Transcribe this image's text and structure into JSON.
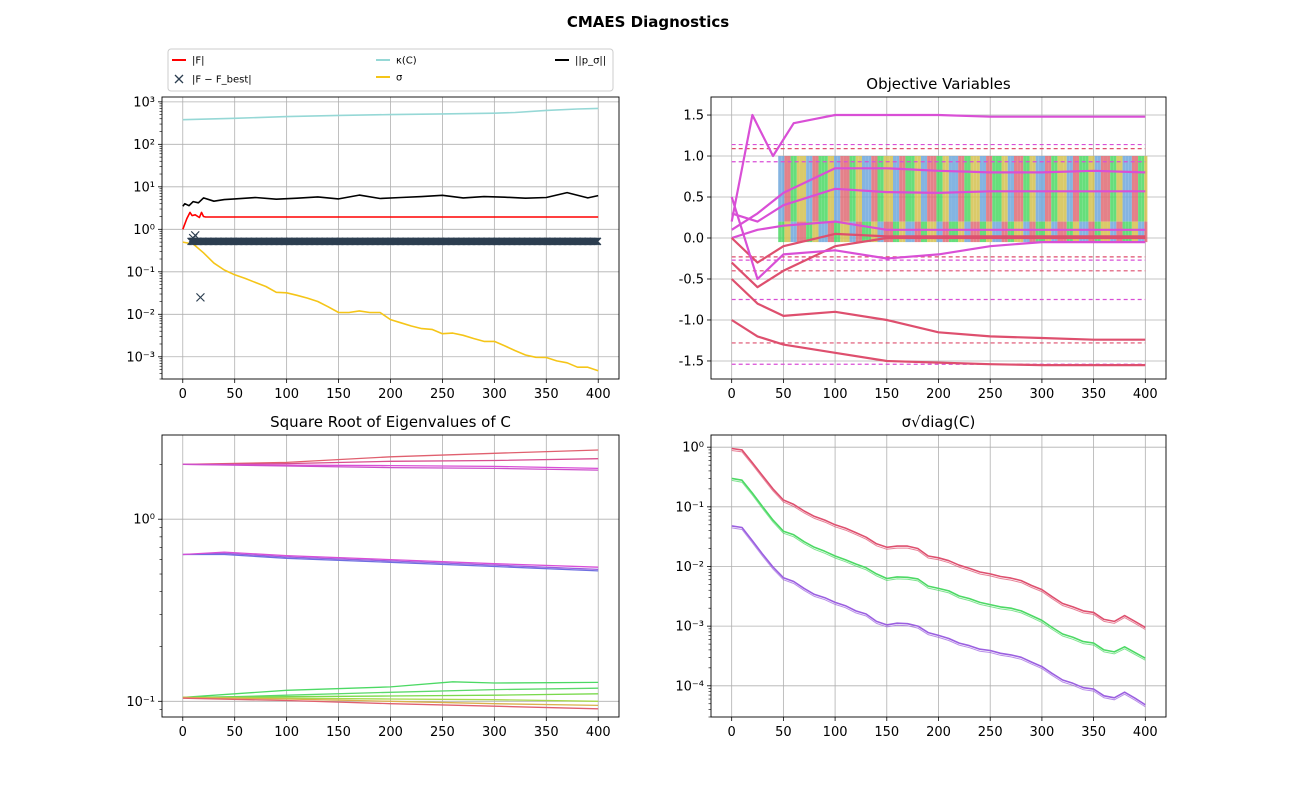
{
  "figure": {
    "title": "CMAES Diagnostics"
  },
  "chart_data": [
    {
      "type": "line",
      "title": "",
      "yscale": "log",
      "ylim": [
        0.0003,
        1300
      ],
      "xlim": [
        -20,
        420
      ],
      "xticks": [
        0,
        50,
        100,
        150,
        200,
        250,
        300,
        350,
        400
      ],
      "ytick_labels": [
        "10^-3",
        "10^-2",
        "10^-1",
        "10^0",
        "10^1",
        "10^2",
        "10^3"
      ],
      "grid": true,
      "legend": {
        "placement": "above",
        "entries": [
          {
            "label": "|F|",
            "color": "#ff0000",
            "marker": "line"
          },
          {
            "label": "|F − F_best|",
            "color": "#2c3e50",
            "marker": "x"
          },
          {
            "label": "κ(C)",
            "color": "#96d8d6",
            "marker": "line"
          },
          {
            "label": "σ",
            "color": "#f5c518",
            "marker": "line"
          },
          {
            "label": "||p_σ||",
            "color": "#000000",
            "marker": "line"
          }
        ]
      },
      "series": [
        {
          "name": "κ(C)",
          "color": "#96d8d6",
          "x": [
            0,
            50,
            100,
            150,
            200,
            250,
            300,
            320,
            350,
            380,
            400
          ],
          "y": [
            380,
            410,
            450,
            480,
            500,
            520,
            540,
            560,
            630,
            680,
            700
          ]
        },
        {
          "name": "||p_σ||",
          "color": "#000000",
          "x": [
            0,
            2,
            6,
            10,
            15,
            20,
            30,
            40,
            50,
            70,
            90,
            110,
            130,
            150,
            170,
            190,
            210,
            230,
            250,
            270,
            290,
            310,
            330,
            350,
            370,
            390,
            400
          ],
          "y": [
            3.5,
            4,
            3.6,
            4.5,
            4.2,
            5.5,
            4.6,
            5,
            5.2,
            5.6,
            5.1,
            5.4,
            5.8,
            5.2,
            6.4,
            5.3,
            5.6,
            5.9,
            6.3,
            5.5,
            5.9,
            5.7,
            5.4,
            5.6,
            7.3,
            5.5,
            6.2
          ]
        },
        {
          "name": "|F|",
          "color": "#ff0000",
          "x": [
            0,
            4,
            7,
            9,
            12,
            16,
            18,
            20,
            22,
            400
          ],
          "y": [
            1,
            1.8,
            2.5,
            2.1,
            2.2,
            1.9,
            2.5,
            2,
            1.95,
            1.95
          ]
        },
        {
          "name": "σ",
          "color": "#f5c518",
          "x": [
            0,
            10,
            20,
            30,
            40,
            50,
            60,
            70,
            80,
            90,
            100,
            110,
            120,
            130,
            140,
            150,
            160,
            170,
            180,
            190,
            200,
            210,
            220,
            230,
            240,
            250,
            260,
            270,
            280,
            290,
            300,
            310,
            320,
            330,
            340,
            350,
            360,
            370,
            380,
            390,
            400
          ],
          "y": [
            0.5,
            0.45,
            0.28,
            0.16,
            0.11,
            0.085,
            0.07,
            0.056,
            0.045,
            0.033,
            0.032,
            0.028,
            0.024,
            0.02,
            0.015,
            0.011,
            0.011,
            0.012,
            0.011,
            0.011,
            0.0075,
            0.0063,
            0.0053,
            0.0046,
            0.0044,
            0.0035,
            0.0036,
            0.0032,
            0.0027,
            0.0023,
            0.0023,
            0.0018,
            0.0014,
            0.0011,
            0.00097,
            0.00096,
            0.0008,
            0.00072,
            0.00057,
            0.00057,
            0.00047
          ]
        },
        {
          "name": "|F − F_best|",
          "color": "#2c3e50",
          "style": "marker-x",
          "x": [
            10,
            12,
            17
          ],
          "y": [
            0.62,
            0.72,
            0.025
          ],
          "flat_value": 0.52,
          "flat_from": 8,
          "flat_to": 400
        }
      ]
    },
    {
      "type": "line",
      "title": "Objective Variables",
      "ylim": [
        -1.72,
        1.72
      ],
      "xlim": [
        -20,
        420
      ],
      "xticks": [
        0,
        50,
        100,
        150,
        200,
        250,
        300,
        350,
        400
      ],
      "yticks": [
        -1.5,
        -1.0,
        -0.5,
        0.0,
        0.5,
        1.0,
        1.5
      ],
      "grid": true,
      "band_colors": [
        "#4cd964",
        "#d4c150",
        "#6fa8dc",
        "#e06c75"
      ],
      "bands": [
        {
          "lo": 0.2,
          "hi": 1.0
        },
        {
          "lo": -0.05,
          "hi": 0.2
        }
      ],
      "dashed_levels": [
        1.14,
        1.09,
        0.93,
        -0.23,
        -0.27,
        -0.4,
        -0.75,
        -1.28,
        -1.54
      ],
      "series": [
        {
          "color": "#d94fd6",
          "x": [
            0,
            20,
            40,
            60,
            80,
            100,
            150,
            200,
            250,
            300,
            350,
            400
          ],
          "y": [
            0.2,
            1.5,
            1.0,
            1.4,
            1.45,
            1.5,
            1.5,
            1.5,
            1.48,
            1.48,
            1.48,
            1.48
          ]
        },
        {
          "color": "#d94fd6",
          "x": [
            0,
            25,
            50,
            100,
            150,
            200,
            250,
            300,
            350,
            400
          ],
          "y": [
            0.1,
            0.3,
            0.55,
            0.85,
            0.85,
            0.82,
            0.8,
            0.8,
            0.82,
            0.8
          ]
        },
        {
          "color": "#d94fd6",
          "x": [
            0,
            25,
            50,
            100,
            150,
            200,
            250,
            300,
            350,
            400
          ],
          "y": [
            0.3,
            0.2,
            0.4,
            0.6,
            0.56,
            0.55,
            0.57,
            0.57,
            0.57,
            0.57
          ]
        },
        {
          "color": "#d94fd6",
          "x": [
            0,
            25,
            50,
            100,
            150,
            200,
            250,
            300,
            350,
            400
          ],
          "y": [
            0.0,
            0.1,
            0.15,
            0.2,
            0.1,
            0.1,
            0.1,
            0.1,
            0.1,
            0.1
          ]
        },
        {
          "color": "#de4f6e",
          "x": [
            0,
            25,
            50,
            100,
            150,
            200,
            250,
            300,
            350,
            400
          ],
          "y": [
            0.0,
            -0.3,
            -0.1,
            0.05,
            0.02,
            0.02,
            0.02,
            0.02,
            0.02,
            0.02
          ]
        },
        {
          "color": "#de4f6e",
          "x": [
            0,
            25,
            50,
            100,
            150,
            200,
            250,
            300,
            350,
            400
          ],
          "y": [
            -0.5,
            -0.8,
            -0.95,
            -0.9,
            -1.0,
            -1.15,
            -1.2,
            -1.22,
            -1.24,
            -1.24
          ]
        },
        {
          "color": "#de4f6e",
          "x": [
            0,
            25,
            50,
            100,
            150,
            200,
            250,
            300,
            350,
            400
          ],
          "y": [
            -1.0,
            -1.2,
            -1.3,
            -1.4,
            -1.5,
            -1.52,
            -1.54,
            -1.55,
            -1.55,
            -1.55
          ]
        },
        {
          "color": "#de4f6e",
          "x": [
            0,
            25,
            50,
            100,
            150,
            200,
            250,
            300,
            350,
            400
          ],
          "y": [
            -0.3,
            -0.6,
            -0.4,
            -0.1,
            0.0,
            0.0,
            0.0,
            0.0,
            0.0,
            0.0
          ]
        },
        {
          "color": "#d94fd6",
          "x": [
            0,
            25,
            50,
            100,
            150,
            200,
            250,
            300,
            350,
            400
          ],
          "y": [
            0.5,
            -0.5,
            -0.2,
            -0.15,
            -0.25,
            -0.2,
            -0.1,
            -0.05,
            -0.05,
            -0.05
          ]
        }
      ]
    },
    {
      "type": "line",
      "title": "Square Root of Eigenvalues of C",
      "yscale": "log",
      "ylim": [
        0.082,
        2.9
      ],
      "xlim": [
        -20,
        420
      ],
      "xticks": [
        0,
        50,
        100,
        150,
        200,
        250,
        300,
        350,
        400
      ],
      "ytick_labels": [
        "10^-1",
        "10^0"
      ],
      "grid": true,
      "series": [
        {
          "color": "#e0606f",
          "x": [
            0,
            100,
            200,
            300,
            400
          ],
          "y": [
            2.0,
            2.05,
            2.2,
            2.3,
            2.4
          ]
        },
        {
          "color": "#d94f8f",
          "x": [
            0,
            100,
            200,
            300,
            400
          ],
          "y": [
            2.0,
            2.02,
            2.08,
            2.1,
            2.15
          ]
        },
        {
          "color": "#d94fd6",
          "x": [
            0,
            100,
            200,
            300,
            400
          ],
          "y": [
            2.0,
            1.98,
            1.97,
            1.95,
            1.9
          ]
        },
        {
          "color": "#cc4fcc",
          "x": [
            0,
            100,
            200,
            300,
            400
          ],
          "y": [
            2.0,
            1.96,
            1.92,
            1.9,
            1.86
          ]
        },
        {
          "color": "#9b5fe0",
          "x": [
            0,
            40,
            100,
            200,
            300,
            400
          ],
          "y": [
            0.64,
            0.65,
            0.62,
            0.59,
            0.56,
            0.53
          ]
        },
        {
          "color": "#6f6fe0",
          "x": [
            0,
            40,
            100,
            200,
            300,
            400
          ],
          "y": [
            0.64,
            0.64,
            0.61,
            0.58,
            0.55,
            0.52
          ]
        },
        {
          "color": "#d94fd6",
          "x": [
            0,
            40,
            100,
            200,
            300,
            400
          ],
          "y": [
            0.64,
            0.66,
            0.63,
            0.6,
            0.57,
            0.545
          ]
        },
        {
          "color": "#4cd964",
          "x": [
            0,
            50,
            100,
            200,
            260,
            300,
            400
          ],
          "y": [
            0.105,
            0.11,
            0.115,
            0.12,
            0.128,
            0.126,
            0.127
          ]
        },
        {
          "color": "#5bd96b",
          "x": [
            0,
            50,
            100,
            200,
            300,
            400
          ],
          "y": [
            0.105,
            0.106,
            0.108,
            0.112,
            0.116,
            0.118
          ]
        },
        {
          "color": "#7ad94c",
          "x": [
            0,
            100,
            200,
            300,
            400
          ],
          "y": [
            0.105,
            0.106,
            0.107,
            0.108,
            0.11
          ]
        },
        {
          "color": "#a6d94c",
          "x": [
            0,
            100,
            200,
            300,
            400
          ],
          "y": [
            0.105,
            0.104,
            0.103,
            0.102,
            0.1
          ]
        },
        {
          "color": "#d9b34c",
          "x": [
            0,
            100,
            200,
            300,
            400
          ],
          "y": [
            0.105,
            0.103,
            0.1,
            0.097,
            0.095
          ]
        },
        {
          "color": "#e0606f",
          "x": [
            0,
            100,
            200,
            300,
            400
          ],
          "y": [
            0.104,
            0.101,
            0.097,
            0.094,
            0.091
          ]
        }
      ]
    },
    {
      "type": "line",
      "title": "σ√diag(C)",
      "yscale": "log",
      "ylim": [
        3e-05,
        1.6
      ],
      "xlim": [
        -20,
        420
      ],
      "xticks": [
        0,
        50,
        100,
        150,
        200,
        250,
        300,
        350,
        400
      ],
      "ytick_labels": [
        "10^-4",
        "10^-3",
        "10^-2",
        "10^-1",
        "10^0"
      ],
      "grid": true,
      "series": [
        {
          "color": "#de4f6e",
          "x": [
            0,
            10,
            20,
            30,
            40,
            50,
            60,
            70,
            80,
            90,
            100,
            110,
            120,
            130,
            140,
            150,
            160,
            170,
            180,
            190,
            200,
            210,
            220,
            230,
            240,
            250,
            260,
            270,
            280,
            290,
            300,
            310,
            320,
            330,
            340,
            350,
            360,
            370,
            380,
            390,
            400
          ],
          "y": [
            0.95,
            0.9,
            0.55,
            0.33,
            0.2,
            0.13,
            0.11,
            0.085,
            0.069,
            0.06,
            0.05,
            0.044,
            0.037,
            0.031,
            0.024,
            0.021,
            0.022,
            0.022,
            0.02,
            0.015,
            0.014,
            0.0125,
            0.0105,
            0.0093,
            0.0081,
            0.0075,
            0.0068,
            0.0064,
            0.0058,
            0.0048,
            0.0041,
            0.0031,
            0.0024,
            0.0021,
            0.0018,
            0.0017,
            0.0013,
            0.0012,
            0.0015,
            0.0012,
            0.00095
          ]
        },
        {
          "color": "#4cd964",
          "x": [
            0,
            10,
            20,
            30,
            40,
            50,
            60,
            70,
            80,
            90,
            100,
            110,
            120,
            130,
            140,
            150,
            160,
            170,
            180,
            190,
            200,
            210,
            220,
            230,
            240,
            250,
            260,
            270,
            280,
            290,
            300,
            310,
            320,
            330,
            340,
            350,
            360,
            370,
            380,
            390,
            400
          ],
          "y": [
            0.3,
            0.28,
            0.17,
            0.1,
            0.06,
            0.039,
            0.034,
            0.026,
            0.021,
            0.018,
            0.015,
            0.013,
            0.011,
            0.0095,
            0.0075,
            0.0063,
            0.0067,
            0.0066,
            0.0062,
            0.0047,
            0.0043,
            0.0039,
            0.0032,
            0.0029,
            0.0025,
            0.0023,
            0.0021,
            0.002,
            0.0018,
            0.0015,
            0.00125,
            0.00095,
            0.00074,
            0.00065,
            0.00055,
            0.00052,
            0.0004,
            0.00037,
            0.00045,
            0.00036,
            0.00029
          ]
        },
        {
          "color": "#9b5fe0",
          "x": [
            0,
            10,
            20,
            30,
            40,
            50,
            60,
            70,
            80,
            90,
            100,
            110,
            120,
            130,
            140,
            150,
            160,
            170,
            180,
            190,
            200,
            210,
            220,
            230,
            240,
            250,
            260,
            270,
            280,
            290,
            300,
            310,
            320,
            330,
            340,
            350,
            360,
            370,
            380,
            390,
            400
          ],
          "y": [
            0.048,
            0.045,
            0.027,
            0.016,
            0.0098,
            0.0065,
            0.0056,
            0.0043,
            0.0034,
            0.003,
            0.0025,
            0.0022,
            0.0018,
            0.0016,
            0.0012,
            0.00105,
            0.00112,
            0.0011,
            0.001,
            0.00078,
            0.0007,
            0.00062,
            0.00052,
            0.00047,
            0.00041,
            0.00039,
            0.00035,
            0.00033,
            0.0003,
            0.00025,
            0.00021,
            0.00016,
            0.000125,
            0.00011,
            9.3e-05,
            8.8e-05,
            6.8e-05,
            6.3e-05,
            7.8e-05,
            6.2e-05,
            4.8e-05
          ]
        }
      ]
    }
  ]
}
